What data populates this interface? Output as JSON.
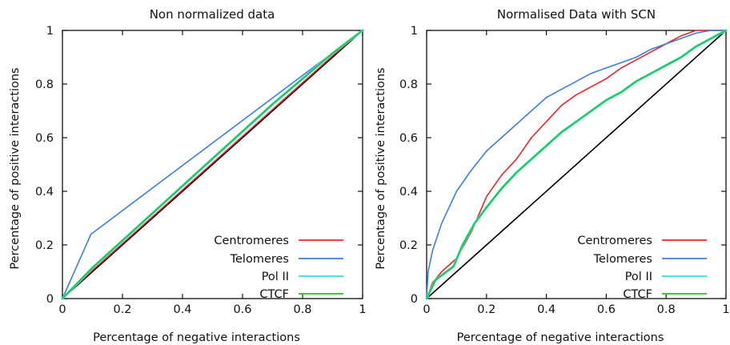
{
  "chart_data": [
    {
      "type": "line",
      "title": "Non normalized data",
      "xlabel": "Percentage of negative interactions",
      "ylabel": "Percentage of positive interactions",
      "xlim": [
        0,
        1
      ],
      "ylim": [
        0,
        1
      ],
      "xticks": [
        "0",
        "0.2",
        "0.4",
        "0.6",
        "0.8",
        "1"
      ],
      "yticks": [
        "0",
        "0.2",
        "0.4",
        "0.6",
        "0.8",
        "1"
      ],
      "grid": false,
      "legend_position": "bottom-right",
      "series": [
        {
          "name": "",
          "color": "#000000",
          "x": [
            0,
            1
          ],
          "y": [
            0,
            1
          ]
        },
        {
          "name": "Centromeres",
          "color": "#e8262a",
          "x": [
            0,
            0.1,
            0.3,
            0.5,
            0.7,
            0.9,
            1
          ],
          "y": [
            0,
            0.105,
            0.305,
            0.505,
            0.705,
            0.905,
            1
          ]
        },
        {
          "name": "Telomeres",
          "color": "#3b7fd9",
          "x": [
            0,
            0.095,
            1
          ],
          "y": [
            0,
            0.24,
            1
          ]
        },
        {
          "name": "Pol II",
          "color": "#44e6e6",
          "x": [
            0,
            0.1,
            0.3,
            0.5,
            0.7,
            0.9,
            1
          ],
          "y": [
            0,
            0.115,
            0.318,
            0.522,
            0.725,
            0.915,
            1
          ]
        },
        {
          "name": "CTCF",
          "color": "#2bbd2b",
          "x": [
            0,
            0.1,
            0.3,
            0.5,
            0.7,
            0.9,
            1
          ],
          "y": [
            0,
            0.115,
            0.318,
            0.522,
            0.725,
            0.915,
            1
          ]
        }
      ]
    },
    {
      "type": "line",
      "title": "Normalised Data with SCN",
      "xlabel": "Percentage of negative interactions",
      "ylabel": "Percentage of positive interactions",
      "xlim": [
        0,
        1
      ],
      "ylim": [
        0,
        1
      ],
      "xticks": [
        "0",
        "0.2",
        "0.4",
        "0.6",
        "0.8",
        "1"
      ],
      "yticks": [
        "0",
        "0.2",
        "0.4",
        "0.6",
        "0.8",
        "1"
      ],
      "grid": false,
      "legend_position": "bottom-right",
      "series": [
        {
          "name": "",
          "color": "#000000",
          "x": [
            0,
            1
          ],
          "y": [
            0,
            1
          ]
        },
        {
          "name": "Centromeres",
          "color": "#e8262a",
          "x": [
            0,
            0.02,
            0.05,
            0.1,
            0.15,
            0.2,
            0.25,
            0.3,
            0.35,
            0.4,
            0.45,
            0.5,
            0.55,
            0.6,
            0.65,
            0.7,
            0.75,
            0.8,
            0.85,
            0.9,
            0.95,
            1
          ],
          "y": [
            0,
            0.06,
            0.1,
            0.15,
            0.25,
            0.38,
            0.46,
            0.52,
            0.6,
            0.66,
            0.72,
            0.76,
            0.79,
            0.82,
            0.86,
            0.89,
            0.92,
            0.95,
            0.98,
            1.0,
            1.0,
            1.0
          ]
        },
        {
          "name": "Telomeres",
          "color": "#3b7fd9",
          "x": [
            0,
            0.005,
            0.02,
            0.05,
            0.1,
            0.15,
            0.2,
            0.25,
            0.3,
            0.35,
            0.4,
            0.45,
            0.5,
            0.55,
            0.6,
            0.65,
            0.7,
            0.75,
            0.8,
            0.85,
            0.9,
            0.95,
            1
          ],
          "y": [
            0,
            0.1,
            0.18,
            0.28,
            0.4,
            0.48,
            0.55,
            0.6,
            0.65,
            0.7,
            0.75,
            0.78,
            0.81,
            0.84,
            0.86,
            0.88,
            0.9,
            0.93,
            0.95,
            0.97,
            0.99,
            1.0,
            1.0
          ]
        },
        {
          "name": "Pol II",
          "color": "#44e6e6",
          "x": [
            0,
            0.03,
            0.09,
            0.12,
            0.16,
            0.2,
            0.25,
            0.3,
            0.35,
            0.4,
            0.45,
            0.5,
            0.55,
            0.6,
            0.65,
            0.7,
            0.75,
            0.8,
            0.85,
            0.9,
            0.95,
            1
          ],
          "y": [
            0,
            0.07,
            0.12,
            0.2,
            0.28,
            0.34,
            0.41,
            0.47,
            0.52,
            0.57,
            0.62,
            0.66,
            0.7,
            0.74,
            0.77,
            0.81,
            0.84,
            0.87,
            0.9,
            0.94,
            0.97,
            1.0
          ]
        },
        {
          "name": "CTCF",
          "color": "#2bbd2b",
          "x": [
            0,
            0.03,
            0.09,
            0.12,
            0.16,
            0.2,
            0.25,
            0.3,
            0.35,
            0.4,
            0.45,
            0.5,
            0.55,
            0.6,
            0.65,
            0.7,
            0.75,
            0.8,
            0.85,
            0.9,
            0.95,
            1
          ],
          "y": [
            0,
            0.07,
            0.12,
            0.2,
            0.28,
            0.34,
            0.41,
            0.47,
            0.52,
            0.57,
            0.62,
            0.66,
            0.7,
            0.74,
            0.77,
            0.81,
            0.84,
            0.87,
            0.9,
            0.94,
            0.97,
            1.0
          ]
        }
      ]
    }
  ]
}
